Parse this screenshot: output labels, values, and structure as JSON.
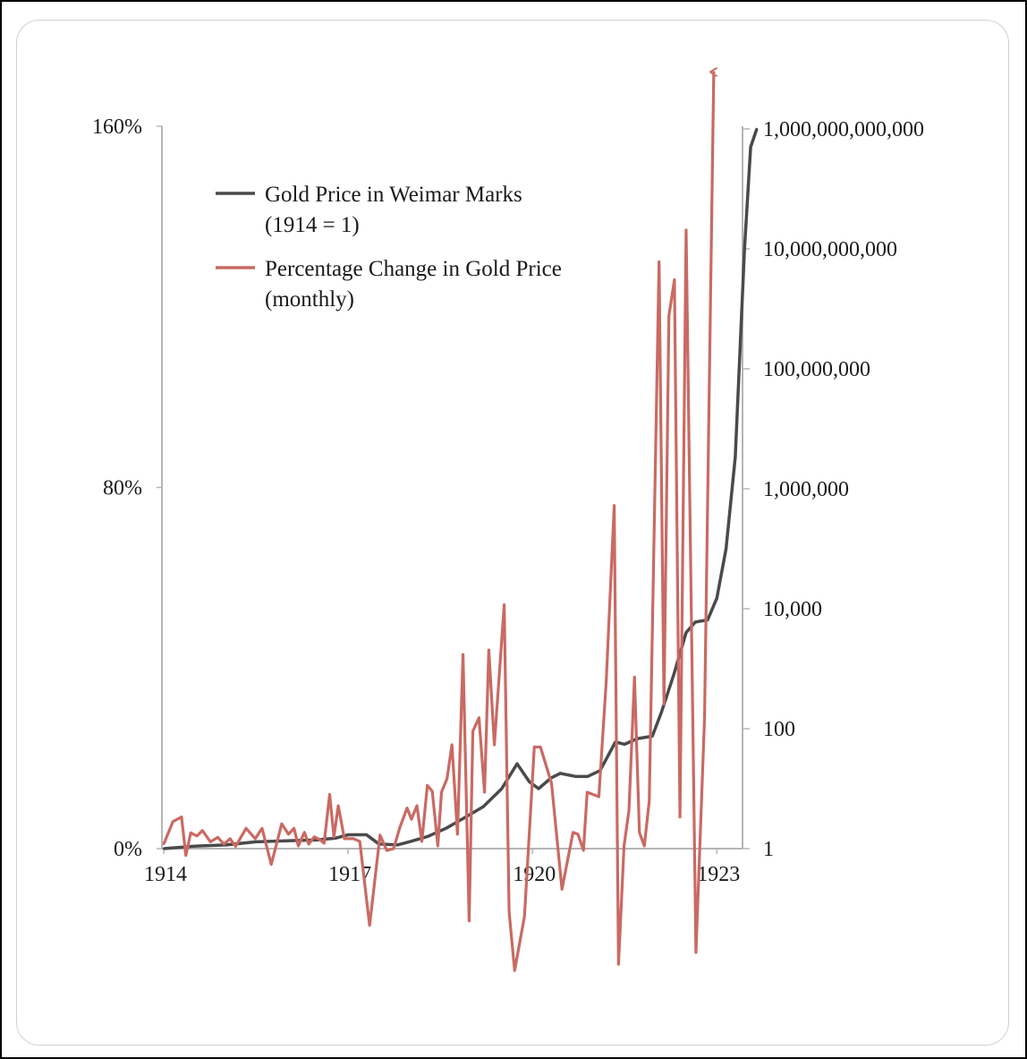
{
  "chart_data": {
    "type": "line",
    "title": "",
    "x_ticks": [
      "1914",
      "1917",
      "1920",
      "1923"
    ],
    "xlim": [
      1914,
      1923.95
    ],
    "left_axis": {
      "ticks": [
        "0%",
        "80%",
        "160%"
      ],
      "tick_values": [
        0,
        80,
        160
      ],
      "ylim": [
        0,
        160
      ],
      "scale": "linear"
    },
    "right_axis": {
      "ticks": [
        "1",
        "100",
        "10,000",
        "1,000,000",
        "100,000,000",
        "10,000,000,000",
        "1,000,000,000,000"
      ],
      "tick_values": [
        1,
        100,
        10000,
        1000000,
        100000000,
        10000000000,
        1000000000000
      ],
      "scale": "log"
    },
    "legend": {
      "placement": "top-left"
    },
    "series": [
      {
        "name": "Gold Price in Weimar Marks (1914 = 1)",
        "name_line1": "Gold Price in Weimar Marks",
        "name_line2": "(1914 = 1)",
        "axis": "right",
        "color": "#4a4a4a",
        "points": [
          [
            1914.0,
            1
          ],
          [
            1914.5,
            1.1
          ],
          [
            1915.0,
            1.15
          ],
          [
            1915.5,
            1.3
          ],
          [
            1916.0,
            1.35
          ],
          [
            1916.5,
            1.4
          ],
          [
            1916.8,
            1.5
          ],
          [
            1917.0,
            1.7
          ],
          [
            1917.3,
            1.7
          ],
          [
            1917.5,
            1.2
          ],
          [
            1917.8,
            1.15
          ],
          [
            1918.0,
            1.3
          ],
          [
            1918.3,
            1.6
          ],
          [
            1918.6,
            2.2
          ],
          [
            1918.9,
            3.3
          ],
          [
            1919.2,
            5
          ],
          [
            1919.5,
            10
          ],
          [
            1919.75,
            26
          ],
          [
            1919.95,
            13
          ],
          [
            1920.1,
            10
          ],
          [
            1920.3,
            15
          ],
          [
            1920.45,
            18
          ],
          [
            1920.7,
            16
          ],
          [
            1920.9,
            16
          ],
          [
            1921.1,
            20
          ],
          [
            1921.35,
            60
          ],
          [
            1921.5,
            55
          ],
          [
            1921.7,
            68
          ],
          [
            1921.95,
            75
          ],
          [
            1922.1,
            190
          ],
          [
            1922.3,
            800
          ],
          [
            1922.5,
            4000
          ],
          [
            1922.65,
            6000
          ],
          [
            1922.85,
            6500
          ],
          [
            1923.0,
            15000
          ],
          [
            1923.15,
            100000
          ],
          [
            1923.3,
            3400000
          ],
          [
            1923.45,
            10000000000
          ],
          [
            1923.55,
            500000000000
          ],
          [
            1923.65,
            1000000000000
          ]
        ]
      },
      {
        "name": "Percentage Change in Gold Price (monthly)",
        "name_line1": "Percentage Change in Gold Price",
        "name_line2": "(monthly)",
        "axis": "left",
        "color": "#c96a63",
        "note": "final value exceeds axis, drawn as arrow",
        "points": [
          [
            1914.0,
            1
          ],
          [
            1914.15,
            6
          ],
          [
            1914.29,
            7
          ],
          [
            1914.36,
            -1.5
          ],
          [
            1914.44,
            3.5
          ],
          [
            1914.54,
            2.8
          ],
          [
            1914.63,
            4
          ],
          [
            1914.76,
            1.5
          ],
          [
            1914.88,
            2.5
          ],
          [
            1914.98,
            1
          ],
          [
            1915.08,
            2.2
          ],
          [
            1915.17,
            0.5
          ],
          [
            1915.34,
            4.5
          ],
          [
            1915.49,
            2.2
          ],
          [
            1915.6,
            4.5
          ],
          [
            1915.75,
            -3.5
          ],
          [
            1915.92,
            5.5
          ],
          [
            1916.03,
            3.2
          ],
          [
            1916.12,
            4.5
          ],
          [
            1916.19,
            0.6
          ],
          [
            1916.29,
            3.6
          ],
          [
            1916.36,
            1
          ],
          [
            1916.45,
            2.6
          ],
          [
            1916.54,
            2
          ],
          [
            1916.61,
            1.2
          ],
          [
            1916.7,
            12
          ],
          [
            1916.77,
            2.6
          ],
          [
            1916.84,
            9.5
          ],
          [
            1916.94,
            2.2
          ],
          [
            1917.09,
            2.2
          ],
          [
            1917.19,
            1.6
          ],
          [
            1917.35,
            -17
          ],
          [
            1917.52,
            3
          ],
          [
            1917.63,
            -0.4
          ],
          [
            1917.74,
            0
          ],
          [
            1917.84,
            4.6
          ],
          [
            1917.96,
            9
          ],
          [
            1918.03,
            6.5
          ],
          [
            1918.12,
            9.5
          ],
          [
            1918.2,
            1.6
          ],
          [
            1918.29,
            14
          ],
          [
            1918.37,
            12.7
          ],
          [
            1918.46,
            0.6
          ],
          [
            1918.52,
            12.5
          ],
          [
            1918.61,
            15.5
          ],
          [
            1918.69,
            23
          ],
          [
            1918.78,
            3.2
          ],
          [
            1918.87,
            43
          ],
          [
            1918.97,
            -16
          ],
          [
            1919.03,
            26
          ],
          [
            1919.13,
            29
          ],
          [
            1919.22,
            12.5
          ],
          [
            1919.29,
            44
          ],
          [
            1919.38,
            23
          ],
          [
            1919.54,
            54
          ],
          [
            1919.62,
            -14
          ],
          [
            1919.71,
            -27
          ],
          [
            1919.87,
            -15
          ],
          [
            1920.03,
            22.5
          ],
          [
            1920.13,
            22.5
          ],
          [
            1920.31,
            14.5
          ],
          [
            1920.48,
            -9
          ],
          [
            1920.66,
            3.6
          ],
          [
            1920.74,
            3.2
          ],
          [
            1920.83,
            -0.4
          ],
          [
            1920.89,
            12.5
          ],
          [
            1921.08,
            11.5
          ],
          [
            1921.2,
            37
          ],
          [
            1921.33,
            76
          ],
          [
            1921.4,
            -25.6
          ],
          [
            1921.49,
            0.6
          ],
          [
            1921.57,
            8.5
          ],
          [
            1921.66,
            38
          ],
          [
            1921.74,
            3.6
          ],
          [
            1921.82,
            0.6
          ],
          [
            1921.9,
            10.5
          ],
          [
            1922.06,
            130
          ],
          [
            1922.14,
            32
          ],
          [
            1922.22,
            118
          ],
          [
            1922.31,
            126
          ],
          [
            1922.4,
            7
          ],
          [
            1922.5,
            137
          ],
          [
            1922.66,
            -23
          ],
          [
            1922.8,
            29
          ],
          [
            1922.95,
            172
          ]
        ]
      }
    ]
  }
}
